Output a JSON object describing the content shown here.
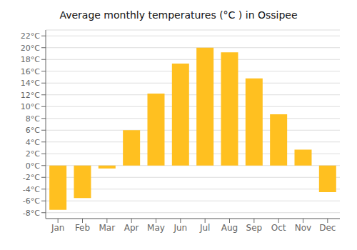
{
  "chart_data": {
    "type": "bar",
    "title": "Average monthly temperatures (°C ) in Ossipee",
    "categories": [
      "Jan",
      "Feb",
      "Mar",
      "Apr",
      "May",
      "Jun",
      "Jul",
      "Aug",
      "Sep",
      "Oct",
      "Nov",
      "Dec"
    ],
    "values": [
      -7.5,
      -5.5,
      -0.5,
      6.0,
      12.2,
      17.3,
      20.0,
      19.2,
      14.8,
      8.7,
      2.7,
      -4.5
    ],
    "color": "#FFC020",
    "ylim": [
      -9,
      23
    ],
    "yticks": [
      {
        "value": -8,
        "label": "-8°C"
      },
      {
        "value": -6,
        "label": "-6°C"
      },
      {
        "value": -4,
        "label": "-4°C"
      },
      {
        "value": -2,
        "label": "-2°C"
      },
      {
        "value": 0,
        "label": "0°C"
      },
      {
        "value": 2,
        "label": "2°C"
      },
      {
        "value": 4,
        "label": "4°C"
      },
      {
        "value": 6,
        "label": "6°C"
      },
      {
        "value": 8,
        "label": "8°C"
      },
      {
        "value": 10,
        "label": "10°C"
      },
      {
        "value": 12,
        "label": "12°C"
      },
      {
        "value": 14,
        "label": "14°C"
      },
      {
        "value": 16,
        "label": "16°C"
      },
      {
        "value": 18,
        "label": "18°C"
      },
      {
        "value": 20,
        "label": "20°C"
      },
      {
        "value": 22,
        "label": "22°C"
      }
    ],
    "grid": true
  }
}
